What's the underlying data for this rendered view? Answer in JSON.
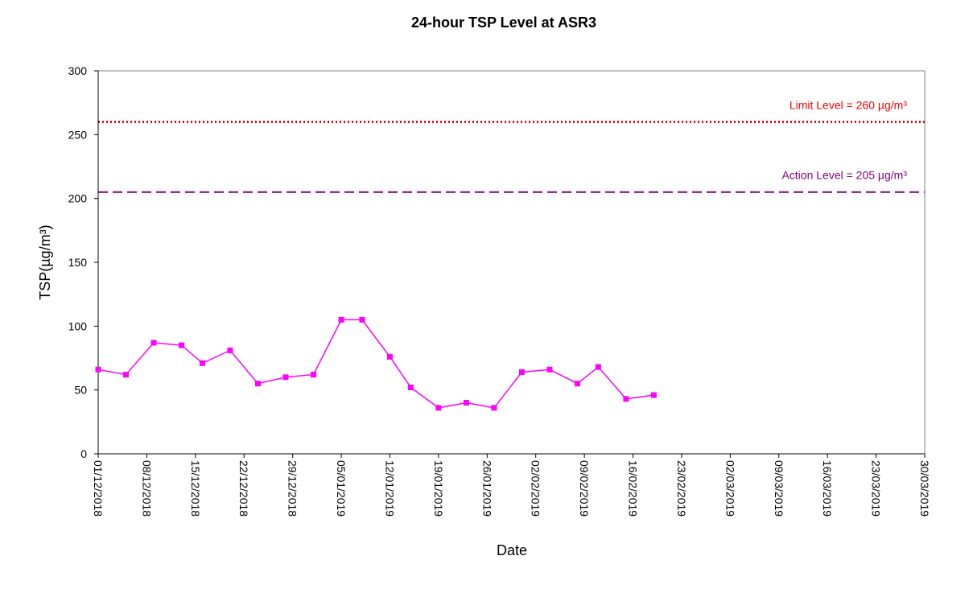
{
  "chart_data": {
    "type": "line",
    "title": "24-hour TSP Level at ASR3",
    "xlabel": "Date",
    "ylabel": "TSP(µg/m³)",
    "ylim": [
      0,
      300
    ],
    "y_ticks": [
      "0",
      "50",
      "100",
      "150",
      "200",
      "250",
      "300"
    ],
    "x_ticks": [
      "01/12/2018",
      "08/12/2018",
      "15/12/2018",
      "22/12/2018",
      "29/12/2018",
      "05/01/2019",
      "12/01/2019",
      "19/01/2019",
      "26/01/2019",
      "02/02/2019",
      "09/02/2019",
      "16/02/2019",
      "23/02/2019",
      "02/03/2019",
      "09/03/2019",
      "16/03/2019",
      "23/03/2019",
      "30/03/2019"
    ],
    "xlim": [
      "01/12/2018",
      "30/03/2019"
    ],
    "grid": false,
    "series": [
      {
        "color": "#ff00ff",
        "marker": "square",
        "points": [
          {
            "x": "01/12/2018",
            "y": 66
          },
          {
            "x": "05/12/2018",
            "y": 62
          },
          {
            "x": "09/12/2018",
            "y": 87
          },
          {
            "x": "13/12/2018",
            "y": 85
          },
          {
            "x": "16/12/2018",
            "y": 71
          },
          {
            "x": "20/12/2018",
            "y": 81
          },
          {
            "x": "24/12/2018",
            "y": 55
          },
          {
            "x": "28/12/2018",
            "y": 60
          },
          {
            "x": "01/01/2019",
            "y": 62
          },
          {
            "x": "05/01/2019",
            "y": 105
          },
          {
            "x": "08/01/2019",
            "y": 105
          },
          {
            "x": "12/01/2019",
            "y": 76
          },
          {
            "x": "15/01/2019",
            "y": 52
          },
          {
            "x": "19/01/2019",
            "y": 36
          },
          {
            "x": "23/01/2019",
            "y": 40
          },
          {
            "x": "27/01/2019",
            "y": 36
          },
          {
            "x": "31/01/2019",
            "y": 64
          },
          {
            "x": "04/02/2019",
            "y": 66
          },
          {
            "x": "08/02/2019",
            "y": 55
          },
          {
            "x": "11/02/2019",
            "y": 68
          },
          {
            "x": "15/02/2019",
            "y": 43
          },
          {
            "x": "19/02/2019",
            "y": 46
          }
        ]
      }
    ],
    "reference_lines": [
      {
        "label": "Limit Level = 260 µg/m³",
        "value": 260,
        "color": "#ff0000",
        "style": "dotted"
      },
      {
        "label": "Action Level = 205 µg/m³",
        "value": 205,
        "color": "#800080",
        "style": "dashed"
      }
    ]
  }
}
